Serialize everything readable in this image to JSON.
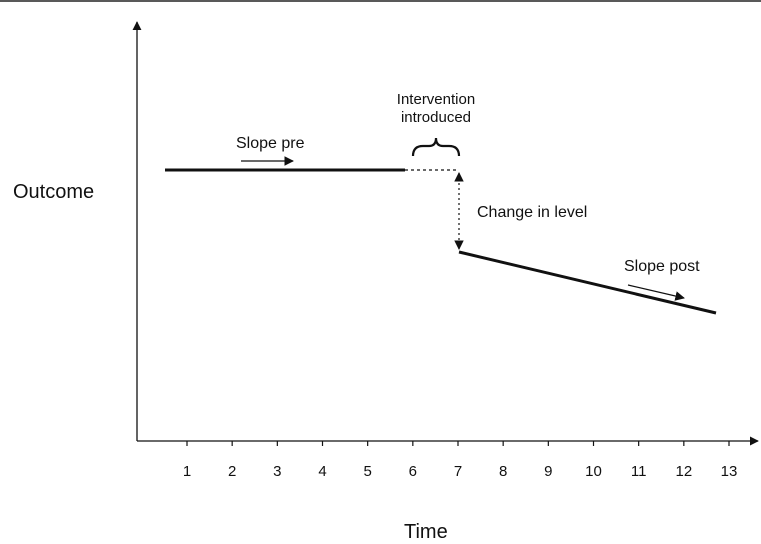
{
  "diagram": {
    "y_axis_label": "Outcome",
    "x_axis_label": "Time",
    "time_points": [
      "1",
      "2",
      "3",
      "4",
      "5",
      "6",
      "7",
      "8",
      "9",
      "10",
      "11",
      "12",
      "13"
    ],
    "annotations": {
      "slope_pre": "Slope pre",
      "intervention_line1": "Intervention",
      "intervention_line2": "introduced",
      "change_in_level": "Change in level",
      "slope_post": "Slope post"
    }
  }
}
